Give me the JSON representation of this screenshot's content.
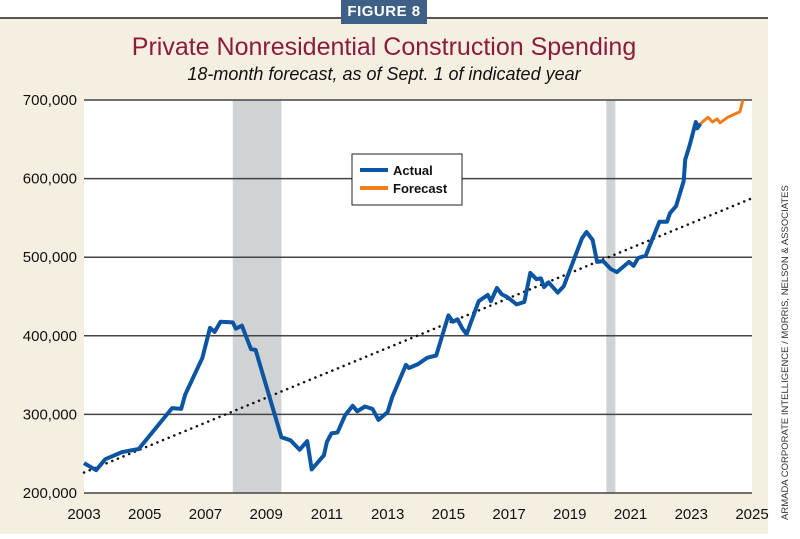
{
  "badge": "FIGURE 8",
  "credit": "ARMADA CORPORATE INTELLIGENCE / MORRIS, NELSON & ASSOCIATES",
  "chart_data": {
    "type": "line",
    "title": "Private Nonresidential Construction Spending",
    "subtitle": "18-month forecast, as of Sept. 1 of indicated year",
    "xlabel": "",
    "ylabel": "",
    "xlim": [
      2003,
      2025
    ],
    "ylim": [
      200000,
      700000
    ],
    "x_ticks": [
      "2003",
      "2005",
      "2007",
      "2009",
      "2011",
      "2013",
      "2015",
      "2017",
      "2019",
      "2021",
      "2023",
      "2025"
    ],
    "y_ticks": [
      "200,000",
      "300,000",
      "400,000",
      "500,000",
      "600,000",
      "700,000"
    ],
    "grid": "horizontal",
    "legend_position": "top-center",
    "recession_bands": [
      [
        2007.9,
        2009.5
      ],
      [
        2020.2,
        2020.5
      ]
    ],
    "series": [
      {
        "name": "Actual",
        "color": "#0b55a3",
        "x": [
          2003.0,
          2003.4,
          2003.7,
          2004.25,
          2004.8,
          2005.9,
          2006.2,
          2006.33,
          2006.9,
          2007.15,
          2007.3,
          2007.5,
          2007.9,
          2008.0,
          2008.2,
          2008.5,
          2008.65,
          2009.5,
          2009.8,
          2010.1,
          2010.35,
          2010.5,
          2010.9,
          2011.0,
          2011.15,
          2011.35,
          2011.6,
          2011.85,
          2012.0,
          2012.25,
          2012.5,
          2012.7,
          2013.0,
          2013.15,
          2013.6,
          2013.7,
          2014.0,
          2014.3,
          2014.6,
          2015.0,
          2015.15,
          2015.3,
          2015.45,
          2015.6,
          2016.0,
          2016.3,
          2016.4,
          2016.6,
          2016.75,
          2016.95,
          2017.25,
          2017.5,
          2017.7,
          2017.9,
          2018.05,
          2018.15,
          2018.3,
          2018.6,
          2018.8,
          2019.4,
          2019.55,
          2019.75,
          2019.9,
          2020.1,
          2020.35,
          2020.55,
          2020.95,
          2021.1,
          2021.25,
          2021.5,
          2021.95,
          2022.2,
          2022.3,
          2022.5,
          2022.75,
          2022.8,
          2022.95,
          2023.15,
          2023.2,
          2023.3
        ],
        "y": [
          238000,
          229000,
          243000,
          252000,
          256000,
          308000,
          307000,
          325000,
          372000,
          410000,
          405000,
          418000,
          417000,
          409000,
          413000,
          383000,
          382000,
          271000,
          267000,
          255000,
          266000,
          230000,
          248000,
          265000,
          276000,
          277000,
          299000,
          311000,
          304000,
          310000,
          307000,
          293000,
          303000,
          322000,
          363000,
          359000,
          364000,
          372000,
          375000,
          426000,
          418000,
          421000,
          410000,
          402000,
          444000,
          452000,
          444000,
          461000,
          453000,
          449000,
          440000,
          443000,
          480000,
          472000,
          473000,
          462000,
          468000,
          455000,
          463000,
          524000,
          532000,
          522000,
          494000,
          495000,
          485000,
          481000,
          494000,
          489000,
          499000,
          502000,
          545000,
          545000,
          556000,
          565000,
          597000,
          624000,
          643000,
          672000,
          664000,
          670000
        ]
      },
      {
        "name": "Forecast",
        "color": "#f07d1a",
        "x": [
          2023.3,
          2023.55,
          2023.7,
          2023.85,
          2023.95,
          2024.2,
          2024.6,
          2024.7
        ],
        "y": [
          670000,
          678000,
          672000,
          676000,
          671000,
          678000,
          685000,
          700000
        ]
      }
    ],
    "trendline": {
      "style": "dotted",
      "x": [
        2003,
        2025
      ],
      "y": [
        226000,
        575000
      ]
    }
  }
}
